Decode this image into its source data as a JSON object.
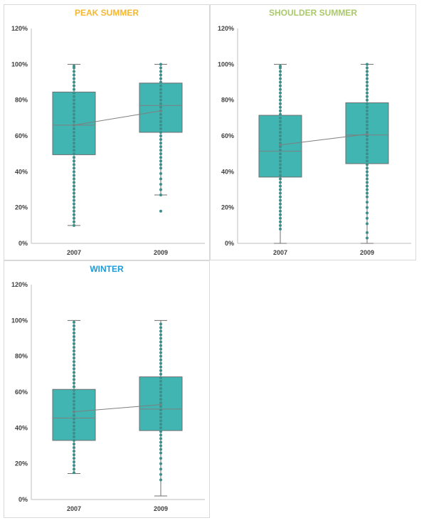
{
  "colors": {
    "box_fill": "#40b5b2",
    "box_stroke": "#6f6f6f",
    "point": "#3d8f8c",
    "mean_line": "#7f7f7f",
    "axis": "#bfbfbf",
    "panel_border": "#d9d9d9"
  },
  "chart_data": [
    {
      "type": "box",
      "title": "PEAK SUMMER",
      "title_color": "#f5b731",
      "xlabel": "",
      "ylabel": "",
      "categories": [
        "2007",
        "2009"
      ],
      "y_ticks": [
        "0%",
        "20%",
        "40%",
        "60%",
        "80%",
        "100%",
        "120%"
      ],
      "ylim": [
        0,
        120
      ],
      "grid": false,
      "boxes": [
        {
          "category": "2007",
          "min": 10,
          "q1": 49.5,
          "median": 66,
          "q3": 84.5,
          "max": 100,
          "mean": 66,
          "points": [
            10,
            12,
            14,
            16,
            18,
            20,
            22,
            24,
            26,
            28,
            30,
            32,
            34,
            36,
            38,
            40,
            42,
            44,
            46,
            48,
            50,
            52,
            54,
            56,
            58,
            60,
            62,
            64,
            66,
            68,
            70,
            72,
            74,
            76,
            78,
            80,
            82,
            84,
            86,
            88,
            90,
            92,
            94,
            96,
            98,
            99
          ]
        },
        {
          "category": "2009",
          "min": 27,
          "q1": 62,
          "median": 77,
          "q3": 89.5,
          "max": 100,
          "mean": 74,
          "points": [
            18,
            27,
            30,
            33,
            36,
            39,
            42,
            44,
            46,
            48,
            50,
            52,
            54,
            56,
            58,
            60,
            62,
            64,
            66,
            68,
            70,
            72,
            74,
            76,
            78,
            80,
            82,
            84,
            86,
            88,
            90,
            92,
            94,
            96,
            98,
            100
          ]
        }
      ]
    },
    {
      "type": "box",
      "title": "SHOULDER SUMMER",
      "title_color": "#a9c96a",
      "xlabel": "",
      "ylabel": "",
      "categories": [
        "2007",
        "2009"
      ],
      "y_ticks": [
        "0%",
        "20%",
        "40%",
        "60%",
        "80%",
        "100%",
        "120%"
      ],
      "ylim": [
        0,
        120
      ],
      "grid": false,
      "boxes": [
        {
          "category": "2007",
          "min": 0,
          "q1": 37,
          "median": 51.5,
          "q3": 71.5,
          "max": 100,
          "mean": 55,
          "points": [
            8,
            10,
            12,
            14,
            16,
            18,
            20,
            22,
            24,
            26,
            28,
            30,
            32,
            34,
            36,
            38,
            40,
            42,
            44,
            46,
            48,
            50,
            52,
            54,
            56,
            58,
            60,
            62,
            64,
            66,
            68,
            70,
            72,
            74,
            76,
            78,
            80,
            82,
            84,
            86,
            88,
            90,
            92,
            94,
            96,
            98,
            99
          ]
        },
        {
          "category": "2009",
          "min": 0,
          "q1": 44.5,
          "median": 60.5,
          "q3": 78.5,
          "max": 100,
          "mean": 61,
          "points": [
            3,
            6,
            11,
            14,
            17,
            20,
            23,
            26,
            28,
            30,
            32,
            34,
            36,
            38,
            40,
            42,
            44,
            46,
            48,
            50,
            52,
            54,
            56,
            58,
            60,
            62,
            64,
            66,
            68,
            70,
            72,
            74,
            76,
            78,
            80,
            82,
            84,
            86,
            88,
            90,
            92,
            94,
            96,
            98,
            100
          ]
        }
      ]
    },
    {
      "type": "box",
      "title": "WINTER",
      "title_color": "#1e9bd7",
      "xlabel": "",
      "ylabel": "",
      "categories": [
        "2007",
        "2009"
      ],
      "y_ticks": [
        "0%",
        "20%",
        "40%",
        "60%",
        "80%",
        "100%",
        "120%"
      ],
      "ylim": [
        0,
        120
      ],
      "grid": false,
      "boxes": [
        {
          "category": "2007",
          "min": 14.5,
          "q1": 33,
          "median": 45.5,
          "q3": 61.5,
          "max": 100,
          "mean": 49,
          "points": [
            15,
            17,
            19,
            21,
            23,
            25,
            27,
            29,
            31,
            33,
            35,
            37,
            39,
            41,
            43,
            45,
            47,
            49,
            51,
            53,
            55,
            57,
            59,
            61,
            63,
            65,
            67,
            69,
            71,
            73,
            75,
            77,
            79,
            81,
            83,
            85,
            87,
            89,
            91,
            93,
            95,
            97,
            99
          ]
        },
        {
          "category": "2009",
          "min": 2,
          "q1": 38.5,
          "median": 50.5,
          "q3": 68.5,
          "max": 100,
          "mean": 53,
          "points": [
            11,
            14,
            17,
            20,
            23,
            26,
            28,
            30,
            32,
            34,
            36,
            38,
            40,
            42,
            44,
            46,
            48,
            50,
            52,
            54,
            56,
            58,
            60,
            62,
            64,
            66,
            68,
            70,
            72,
            74,
            76,
            78,
            80,
            82,
            84,
            86,
            88,
            90,
            92,
            94,
            96,
            98
          ]
        }
      ]
    }
  ]
}
